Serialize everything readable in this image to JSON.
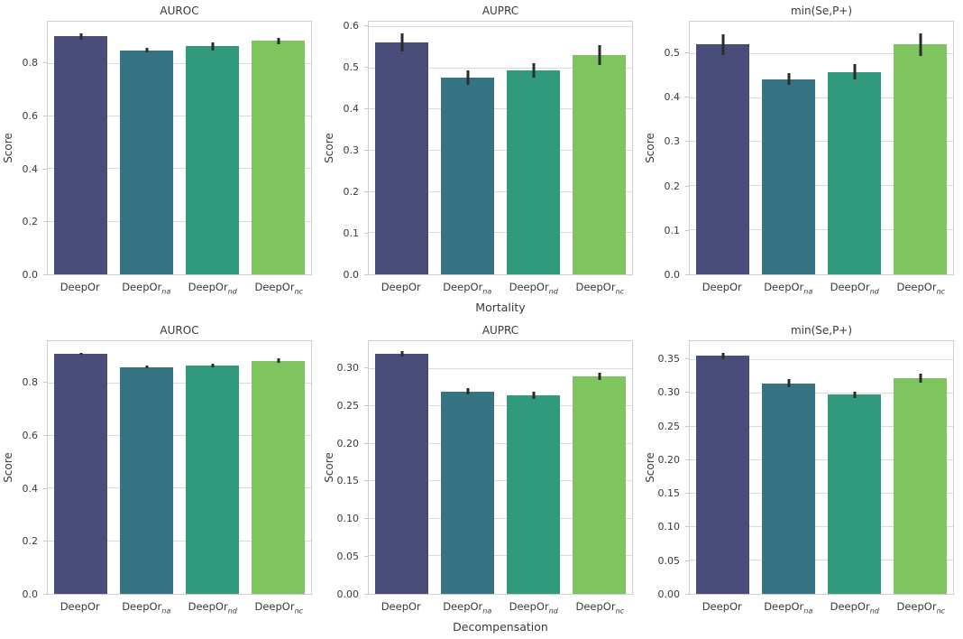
{
  "figure": {
    "background": "#ffffff",
    "text_color": "#3a3a3a",
    "grid_color": "#dcdcdc",
    "spine_color": "#cfcfcf",
    "errorbar_color": "#2b2b2b",
    "bar_colors": [
      "#4a4c7a",
      "#377483",
      "#319a7d",
      "#7fc55f"
    ],
    "row_group_labels": [
      "Mortality",
      "Decompensation"
    ]
  },
  "chart_data": [
    {
      "name": "auroc-mortality",
      "type": "bar",
      "title": "AUROC",
      "xlabel": "",
      "ylabel": "Score",
      "ylim": [
        0,
        0.96
      ],
      "yticks": [
        0.0,
        0.2,
        0.4,
        0.6,
        0.8
      ],
      "ytick_decimals": 1,
      "grid": true,
      "categories": [
        "DeepOr",
        "DeepOr_na",
        "DeepOr_nd",
        "DeepOr_nc"
      ],
      "values": [
        0.904,
        0.851,
        0.866,
        0.888
      ],
      "errors": [
        0.013,
        0.009,
        0.015,
        0.012
      ]
    },
    {
      "name": "auprc-mortality",
      "type": "bar",
      "title": "AUPRC",
      "xlabel": "Mortality",
      "ylabel": "Score",
      "ylim": [
        0,
        0.613
      ],
      "yticks": [
        0.0,
        0.1,
        0.2,
        0.3,
        0.4,
        0.5,
        0.6
      ],
      "ytick_decimals": 1,
      "grid": true,
      "categories": [
        "DeepOr",
        "DeepOr_na",
        "DeepOr_nd",
        "DeepOr_nc"
      ],
      "values": [
        0.562,
        0.477,
        0.495,
        0.532
      ],
      "errors": [
        0.022,
        0.017,
        0.018,
        0.025
      ]
    },
    {
      "name": "min-se-p-mortality",
      "type": "bar",
      "title": "min(Se,P+)",
      "xlabel": "",
      "ylabel": "Score",
      "ylim": [
        0,
        0.573
      ],
      "yticks": [
        0.0,
        0.1,
        0.2,
        0.3,
        0.4,
        0.5
      ],
      "ytick_decimals": 1,
      "grid": true,
      "categories": [
        "DeepOr",
        "DeepOr_na",
        "DeepOr_nd",
        "DeepOr_nc"
      ],
      "values": [
        0.521,
        0.443,
        0.459,
        0.521
      ],
      "errors": [
        0.024,
        0.014,
        0.017,
        0.026
      ]
    },
    {
      "name": "auroc-decompensation",
      "type": "bar",
      "title": "AUROC",
      "xlabel": "",
      "ylabel": "Score",
      "ylim": [
        0,
        0.96
      ],
      "yticks": [
        0.0,
        0.2,
        0.4,
        0.6,
        0.8
      ],
      "ytick_decimals": 1,
      "grid": true,
      "categories": [
        "DeepOr",
        "DeepOr_na",
        "DeepOr_nd",
        "DeepOr_nc"
      ],
      "values": [
        0.912,
        0.862,
        0.868,
        0.886
      ],
      "errors": [
        0.005,
        0.006,
        0.006,
        0.008
      ]
    },
    {
      "name": "auprc-decompensation",
      "type": "bar",
      "title": "AUPRC",
      "xlabel": "Decompensation",
      "ylabel": "Score",
      "ylim": [
        0,
        0.337
      ],
      "yticks": [
        0.0,
        0.05,
        0.1,
        0.15,
        0.2,
        0.25,
        0.3
      ],
      "ytick_decimals": 2,
      "grid": true,
      "categories": [
        "DeepOr",
        "DeepOr_na",
        "DeepOr_nd",
        "DeepOr_nc"
      ],
      "values": [
        0.32,
        0.27,
        0.265,
        0.29
      ],
      "errors": [
        0.004,
        0.004,
        0.005,
        0.005
      ]
    },
    {
      "name": "min-se-p-decompensation",
      "type": "bar",
      "title": "min(Se,P+)",
      "xlabel": "",
      "ylabel": "Score",
      "ylim": [
        0,
        0.378
      ],
      "yticks": [
        0.0,
        0.05,
        0.1,
        0.15,
        0.2,
        0.25,
        0.3,
        0.35
      ],
      "ytick_decimals": 2,
      "grid": true,
      "categories": [
        "DeepOr",
        "DeepOr_na",
        "DeepOr_nd",
        "DeepOr_nc"
      ],
      "values": [
        0.356,
        0.315,
        0.298,
        0.323
      ],
      "errors": [
        0.005,
        0.006,
        0.005,
        0.007
      ]
    }
  ]
}
